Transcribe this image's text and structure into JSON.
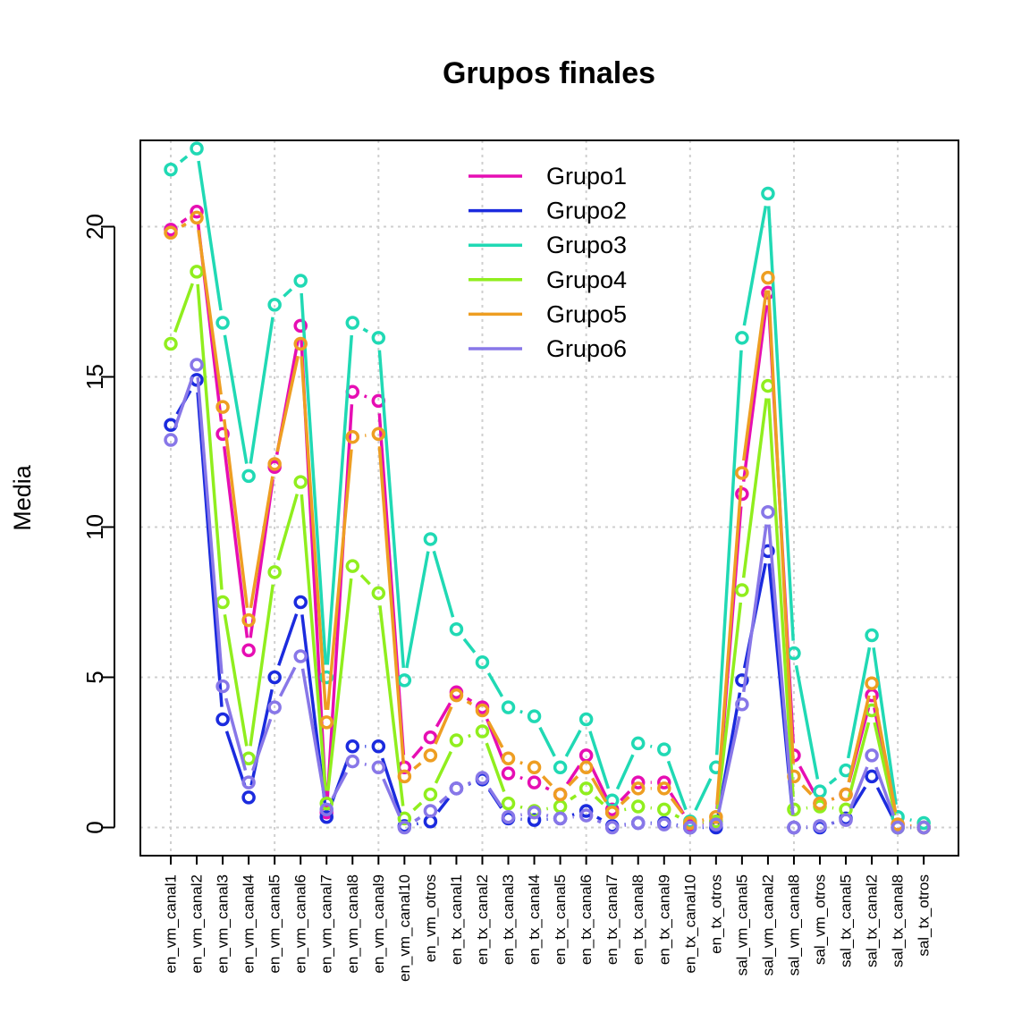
{
  "chart_data": {
    "type": "line",
    "title": "Grupos finales",
    "xlabel": "",
    "ylabel": "Media",
    "ylim": [
      -1,
      22.5
    ],
    "yticks": [
      0,
      5,
      10,
      15,
      20
    ],
    "grid": true,
    "legend_position": "top-center",
    "categories": [
      "en_vm_canal1",
      "en_vm_canal2",
      "en_vm_canal3",
      "en_vm_canal4",
      "en_vm_canal5",
      "en_vm_canal6",
      "en_vm_canal7",
      "en_vm_canal8",
      "en_vm_canal9",
      "en_vm_canal10",
      "en_vm_otros",
      "en_tx_canal1",
      "en_tx_canal2",
      "en_tx_canal3",
      "en_tx_canal4",
      "en_tx_canal5",
      "en_tx_canal6",
      "en_tx_canal7",
      "en_tx_canal8",
      "en_tx_canal9",
      "en_tx_canal10",
      "en_tx_otros",
      "sal_vm_canal5",
      "sal_vm_canal2",
      "sal_vm_canal8",
      "sal_vm_otros",
      "sal_tx_canal5",
      "sal_tx_canal2",
      "sal_tx_canal8",
      "sal_tx_otros"
    ],
    "series": [
      {
        "name": "Grupo1",
        "color": "#E60EB3",
        "values": [
          19.9,
          20.5,
          13.1,
          5.9,
          12.0,
          16.7,
          0.5,
          14.5,
          14.2,
          2.0,
          3.0,
          4.5,
          4.0,
          1.8,
          1.5,
          1.1,
          2.4,
          0.6,
          1.5,
          1.5,
          0.1,
          0.2,
          11.1,
          17.8,
          2.4,
          0.8,
          1.1,
          4.4,
          0.1,
          0.0
        ]
      },
      {
        "name": "Grupo2",
        "color": "#1B2BDE",
        "values": [
          13.4,
          14.9,
          3.6,
          1.0,
          5.0,
          7.5,
          0.35,
          2.7,
          2.7,
          0.05,
          0.2,
          1.3,
          1.6,
          0.3,
          0.25,
          0.3,
          0.55,
          0.05,
          0.15,
          0.15,
          0.0,
          0.0,
          4.9,
          9.2,
          0.0,
          0.0,
          0.3,
          1.7,
          0.0,
          0.0
        ]
      },
      {
        "name": "Grupo3",
        "color": "#20D9B4",
        "values": [
          21.9,
          22.6,
          16.8,
          11.7,
          17.4,
          18.2,
          5.0,
          16.8,
          16.3,
          4.9,
          9.6,
          6.6,
          5.5,
          4.0,
          3.7,
          2.0,
          3.6,
          0.9,
          2.8,
          2.6,
          0.2,
          2.0,
          16.3,
          21.1,
          5.8,
          1.2,
          1.9,
          6.4,
          0.35,
          0.15
        ]
      },
      {
        "name": "Grupo4",
        "color": "#90EE1E",
        "values": [
          16.1,
          18.5,
          7.5,
          2.3,
          8.5,
          11.5,
          0.8,
          8.7,
          7.8,
          0.3,
          1.1,
          2.9,
          3.2,
          0.8,
          0.55,
          0.7,
          1.3,
          0.5,
          0.7,
          0.6,
          0.15,
          0.2,
          7.9,
          14.7,
          0.6,
          0.7,
          0.6,
          3.9,
          0.0,
          0.0
        ]
      },
      {
        "name": "Grupo5",
        "color": "#EE9E22",
        "values": [
          19.8,
          20.3,
          14.0,
          6.9,
          12.1,
          16.1,
          3.5,
          13.0,
          13.1,
          1.7,
          2.4,
          4.4,
          3.9,
          2.3,
          2.0,
          1.1,
          2.0,
          0.5,
          1.3,
          1.3,
          0.15,
          0.35,
          11.8,
          18.3,
          1.7,
          0.8,
          1.1,
          4.8,
          0.1,
          0.0
        ]
      },
      {
        "name": "Grupo6",
        "color": "#8877E8",
        "values": [
          12.9,
          15.4,
          4.7,
          1.5,
          4.0,
          5.7,
          0.6,
          2.2,
          2.0,
          0.0,
          0.55,
          1.3,
          1.65,
          0.35,
          0.5,
          0.3,
          0.4,
          0.0,
          0.15,
          0.1,
          0.0,
          0.1,
          4.1,
          10.5,
          0.0,
          0.05,
          0.25,
          2.4,
          0.0,
          0.0
        ]
      }
    ]
  }
}
